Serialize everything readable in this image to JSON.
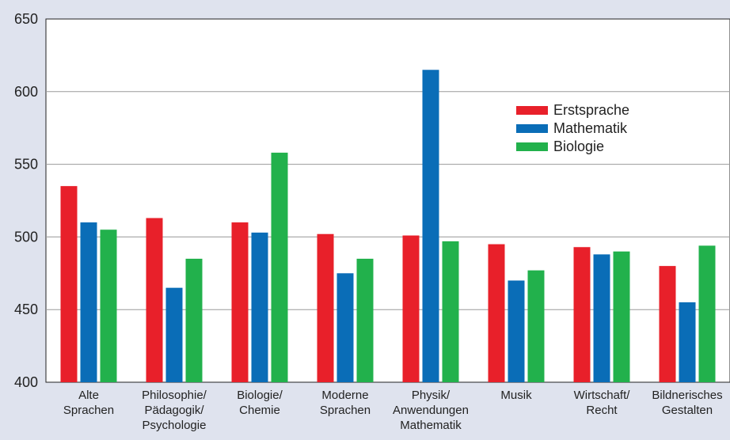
{
  "chart_data": {
    "type": "bar",
    "title": "",
    "xlabel": "",
    "ylabel": "",
    "ylim": [
      400,
      650
    ],
    "yticks": [
      400,
      450,
      500,
      550,
      600,
      650
    ],
    "grid": true,
    "legend_position": "top-right",
    "categories": [
      [
        "Alte",
        "Sprachen"
      ],
      [
        "Philosophie/",
        "Pädagogik/",
        "Psychologie"
      ],
      [
        "Biologie/",
        "Chemie"
      ],
      [
        "Moderne",
        "Sprachen"
      ],
      [
        "Physik/",
        "Anwendungen",
        "Mathematik"
      ],
      [
        "Musik"
      ],
      [
        "Wirtschaft/",
        "Recht"
      ],
      [
        "Bildnerisches",
        "Gestalten"
      ]
    ],
    "series": [
      {
        "name": "Erstsprache",
        "color": "#e8202a",
        "values": [
          535,
          513,
          510,
          502,
          501,
          495,
          493,
          480
        ]
      },
      {
        "name": "Mathematik",
        "color": "#0a6db7",
        "values": [
          510,
          465,
          503,
          475,
          615,
          470,
          488,
          455
        ]
      },
      {
        "name": "Biologie",
        "color": "#22b14c",
        "values": [
          505,
          485,
          558,
          485,
          497,
          477,
          490,
          494
        ]
      }
    ]
  }
}
